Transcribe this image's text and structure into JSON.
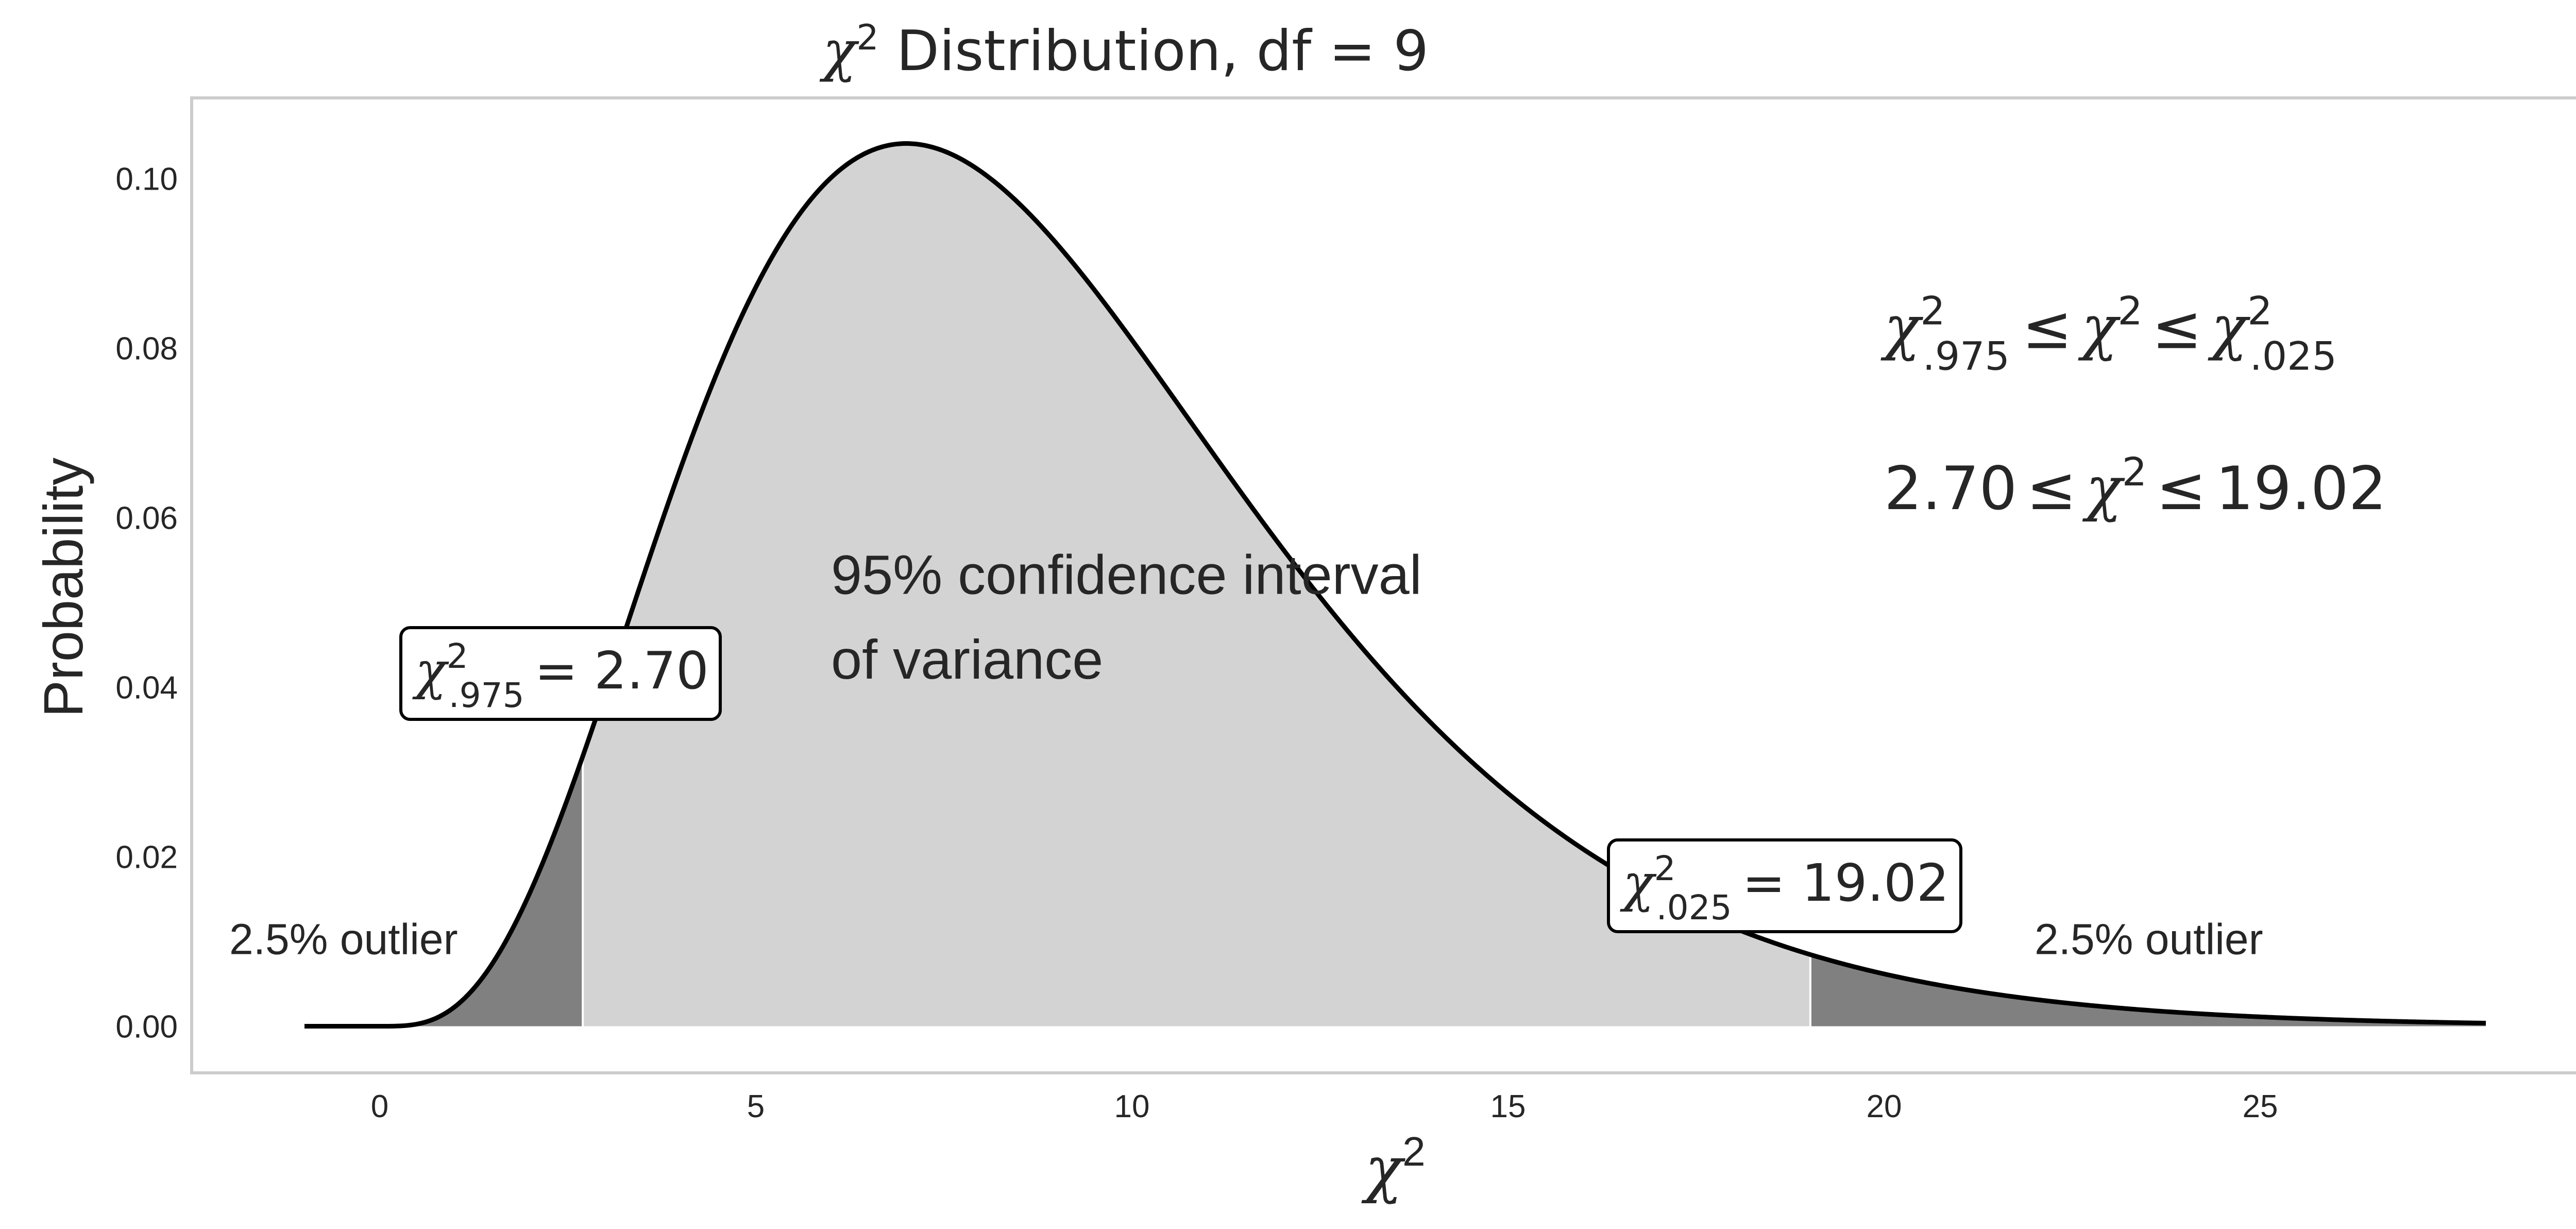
{
  "chart_data": {
    "type": "area",
    "title": "χ² Distribution, df = 9",
    "title_parts": {
      "symbol": "χ",
      "superscript": "2",
      "rest": " Distribution, df = 9"
    },
    "xlabel": "χ²",
    "xlabel_parts": {
      "symbol": "χ",
      "superscript": "2"
    },
    "ylabel": "Probability",
    "df": 9,
    "xlim": [
      -2.5,
      29.5
    ],
    "ylim": [
      -0.0055,
      0.1095
    ],
    "x_ticks": [
      0,
      5,
      10,
      15,
      20,
      25
    ],
    "x_tick_labels": [
      "0",
      "5",
      "10",
      "15",
      "20",
      "25"
    ],
    "y_ticks": [
      0.0,
      0.02,
      0.04,
      0.06,
      0.08,
      0.1
    ],
    "y_tick_labels": [
      "0.00",
      "0.02",
      "0.04",
      "0.06",
      "0.08",
      "0.10"
    ],
    "grid": false,
    "curve_range": [
      -1,
      28
    ],
    "lower_critical": 2.7,
    "upper_critical": 19.02,
    "colors": {
      "curve": "#000000",
      "tail_fill": "#808080",
      "middle_fill": "#d3d3d3",
      "frame": "#cccccc",
      "text": "#262626"
    },
    "annotations": {
      "lower_box": {
        "symbol": "χ",
        "sup": "2",
        "sub": ".975",
        "value": "= 2.70",
        "x": 2.7,
        "y": 0.042
      },
      "upper_box": {
        "symbol": "χ",
        "sup": "2",
        "sub": ".025",
        "value": "= 19.02",
        "x": 19.02,
        "y": 0.017
      },
      "left_outlier": {
        "text": "2.5% outlier",
        "x": -2,
        "y": 0.0085
      },
      "right_outlier": {
        "text": "2.5% outlier",
        "x": 22,
        "y": 0.0085
      },
      "ci_line1": {
        "text": "95% confidence interval",
        "x": 6,
        "y": 0.051
      },
      "ci_line2": {
        "text": "of variance",
        "x": 6,
        "y": 0.041
      },
      "inequality_symbolic": {
        "symbol": "χ",
        "sup": "2",
        "lower_sub": ".975",
        "upper_sub": ".025",
        "leq": "≤",
        "x": 20,
        "y": 0.08
      },
      "inequality_numeric": {
        "lower": "2.70",
        "upper": "19.02",
        "symbol": "χ",
        "sup": "2",
        "leq": "≤",
        "x": 20,
        "y": 0.061
      }
    }
  }
}
